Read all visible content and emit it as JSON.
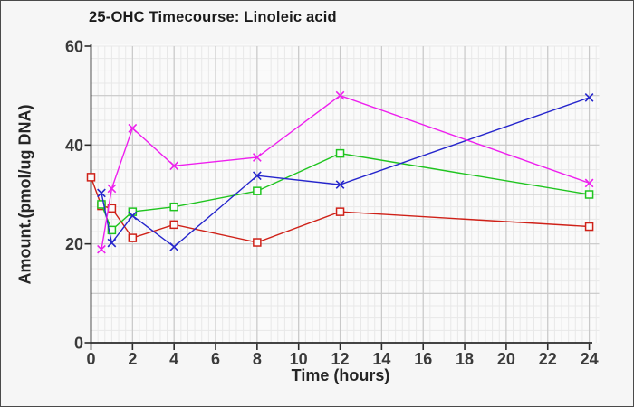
{
  "chart_data": {
    "type": "line",
    "title": "25-OHC Timecourse: Linoleic acid",
    "xlabel": "Time (hours)",
    "ylabel": "Amount.(pmol/ug DNA)",
    "xlim": [
      0,
      24.5
    ],
    "ylim": [
      0,
      60
    ],
    "x_ticks": [
      0,
      2,
      4,
      6,
      8,
      10,
      12,
      14,
      16,
      18,
      20,
      22,
      24
    ],
    "y_ticks": [
      0,
      20,
      40,
      60
    ],
    "grid": {
      "minor": true,
      "major_x_step_hours": 2,
      "major_y_step_units": 10
    },
    "legend": "none",
    "series": [
      {
        "name": "red",
        "marker": "square",
        "color": "#cf2118",
        "points": [
          [
            0,
            33.5
          ],
          [
            0.5,
            27.7
          ],
          [
            1,
            27.2
          ],
          [
            2,
            21.2
          ],
          [
            4,
            23.9
          ],
          [
            8,
            20.3
          ],
          [
            12,
            26.5
          ],
          [
            24,
            23.5
          ]
        ]
      },
      {
        "name": "green",
        "marker": "square",
        "color": "#1fc41f",
        "points": [
          [
            0.5,
            28
          ],
          [
            1,
            22.8
          ],
          [
            2,
            26.5
          ],
          [
            4,
            27.5
          ],
          [
            8,
            30.7
          ],
          [
            12,
            38.3
          ],
          [
            24,
            30
          ]
        ]
      },
      {
        "name": "blue",
        "marker": "x",
        "color": "#2525cc",
        "points": [
          [
            0.5,
            30.3
          ],
          [
            1,
            20.2
          ],
          [
            2,
            25.7
          ],
          [
            4,
            19.4
          ],
          [
            8,
            33.8
          ],
          [
            12,
            32
          ],
          [
            24,
            49.6
          ]
        ]
      },
      {
        "name": "magenta",
        "marker": "x",
        "color": "#ee1fee",
        "points": [
          [
            0.5,
            18.9
          ],
          [
            1,
            31.2
          ],
          [
            2,
            43.4
          ],
          [
            4,
            35.8
          ],
          [
            8,
            37.5
          ],
          [
            12,
            50
          ],
          [
            24,
            32.3
          ]
        ]
      }
    ],
    "colors": {
      "outer_bg": "#f6f6f6",
      "plot_bg": "#fafafa",
      "minor_grid": "#e8e8e8",
      "major_grid": "#c9c9c9",
      "axis": "#2a2a2a",
      "tick_label": "#3a3a3a",
      "marker_fill": "#fbfbfb",
      "frame_border": "#4a4a4a"
    }
  }
}
